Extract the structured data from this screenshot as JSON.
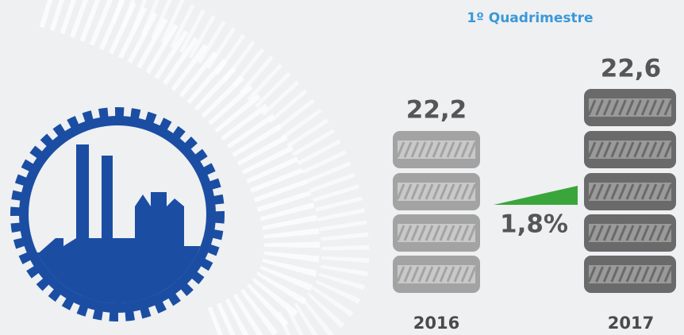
{
  "header": {
    "title": "1º Quadrimestre"
  },
  "items": [
    {
      "year": "2016",
      "value": "22,2"
    },
    {
      "year": "2017",
      "value": "22,6"
    }
  ],
  "growth": "1,8%"
}
